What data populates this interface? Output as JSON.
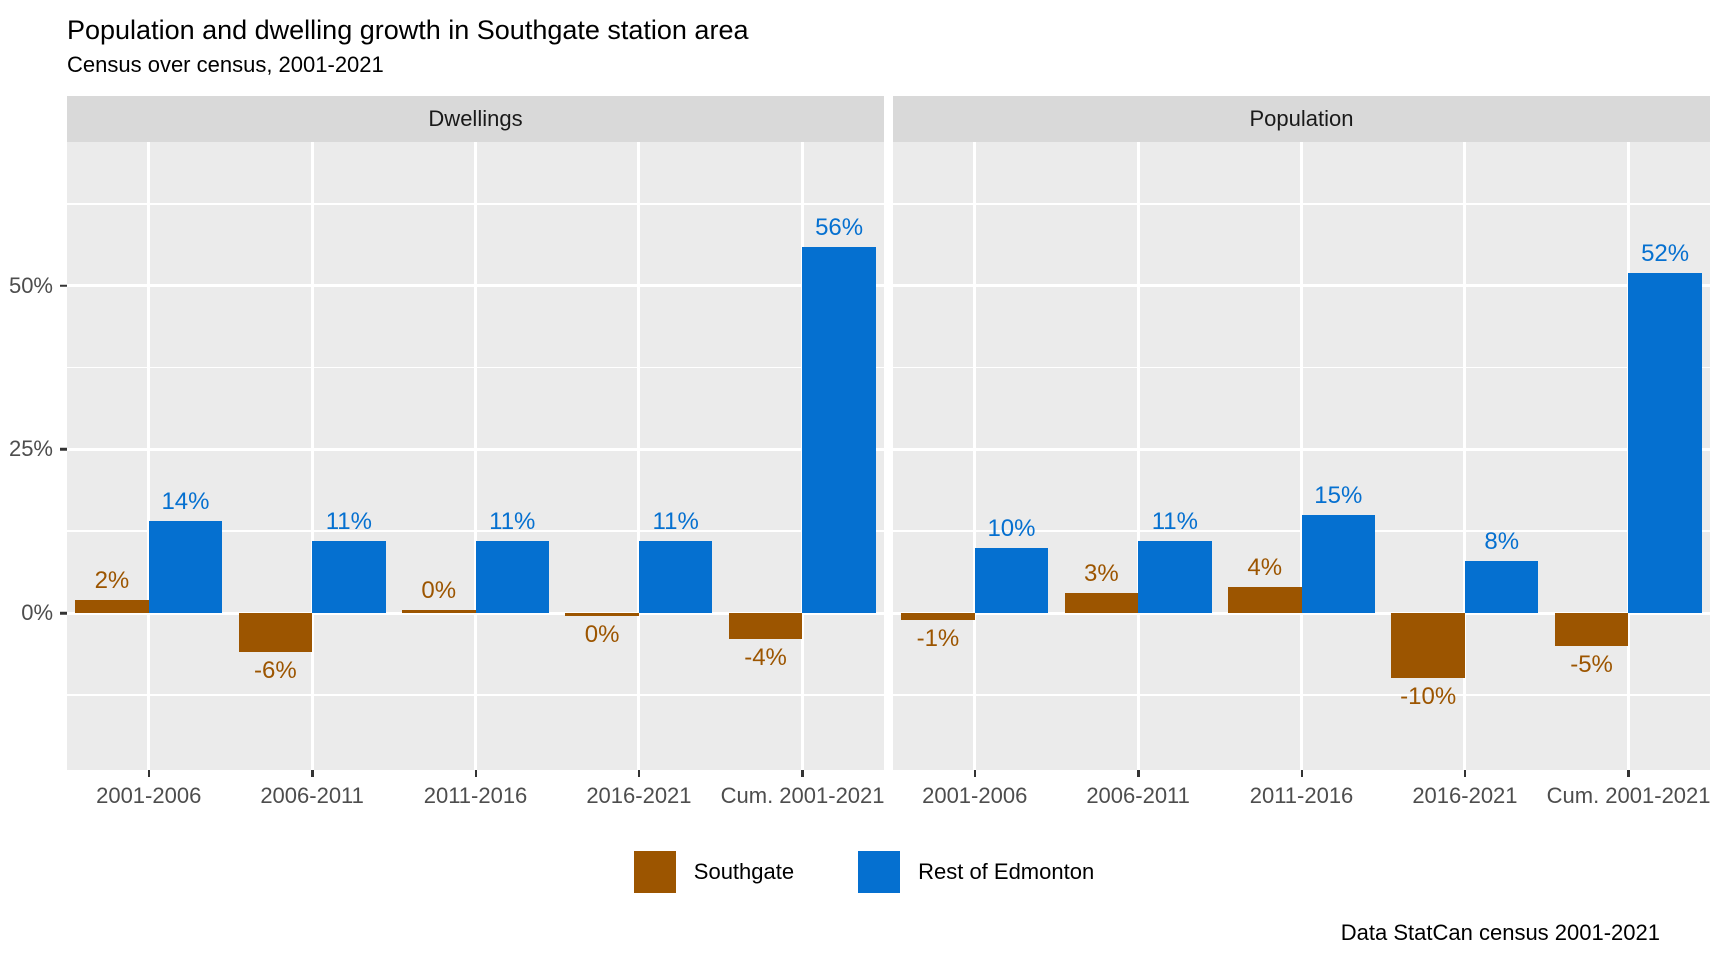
{
  "title": "Population and dwelling growth in Southgate station area",
  "subtitle": "Census over census, 2001-2021",
  "caption": "Data StatCan census 2001-2021",
  "colors": {
    "southgate": "#9c5500",
    "rest_of_edmonton": "#0570d0",
    "panel_bg": "#ebebeb",
    "strip_bg": "#d9d9d9",
    "gridline": "#ffffff",
    "axis_text": "#4d4d4d",
    "tick": "#333333"
  },
  "legend": {
    "position": "bottom",
    "items": [
      {
        "label": "Southgate",
        "color": "#9c5500"
      },
      {
        "label": "Rest of Edmonton",
        "color": "#0570d0"
      }
    ]
  },
  "chart_data": {
    "type": "bar",
    "layout": "faceted-grouped-bars",
    "categories": [
      "2001-2006",
      "2006-2011",
      "2011-2016",
      "2016-2021",
      "Cum. 2001-2021"
    ],
    "facets": [
      {
        "label": "Dwellings",
        "series": [
          {
            "name": "Southgate",
            "color": "#9c5500",
            "values": [
              2,
              -6,
              0,
              0,
              -4
            ],
            "labels": [
              "2%",
              "-6%",
              "0%",
              "0%",
              "-4%"
            ],
            "label_side": [
              "above",
              "below",
              "above",
              "below",
              "below"
            ]
          },
          {
            "name": "Rest of Edmonton",
            "color": "#0570d0",
            "values": [
              14,
              11,
              11,
              11,
              56
            ],
            "labels": [
              "14%",
              "11%",
              "11%",
              "11%",
              "56%"
            ],
            "label_side": [
              "above",
              "above",
              "above",
              "above",
              "above"
            ]
          }
        ]
      },
      {
        "label": "Population",
        "series": [
          {
            "name": "Southgate",
            "color": "#9c5500",
            "values": [
              -1,
              3,
              4,
              -10,
              -5
            ],
            "labels": [
              "-1%",
              "3%",
              "4%",
              "-10%",
              "-5%"
            ],
            "label_side": [
              "below",
              "above",
              "above",
              "below",
              "below"
            ]
          },
          {
            "name": "Rest of Edmonton",
            "color": "#0570d0",
            "values": [
              10,
              11,
              15,
              8,
              52
            ],
            "labels": [
              "10%",
              "11%",
              "15%",
              "8%",
              "52%"
            ],
            "label_side": [
              "above",
              "above",
              "above",
              "above",
              "above"
            ]
          }
        ]
      }
    ],
    "yaxis": {
      "unit": "%",
      "ymin": -24,
      "ymax": 72,
      "major_gridlines": [
        0,
        25,
        50
      ],
      "minor_gridlines": [
        -12.5,
        12.5,
        37.5,
        62.5
      ],
      "ticks": [
        {
          "value": 0,
          "label": "0%"
        },
        {
          "value": 25,
          "label": "25%"
        },
        {
          "value": 50,
          "label": "50%"
        }
      ]
    },
    "grid": true
  }
}
